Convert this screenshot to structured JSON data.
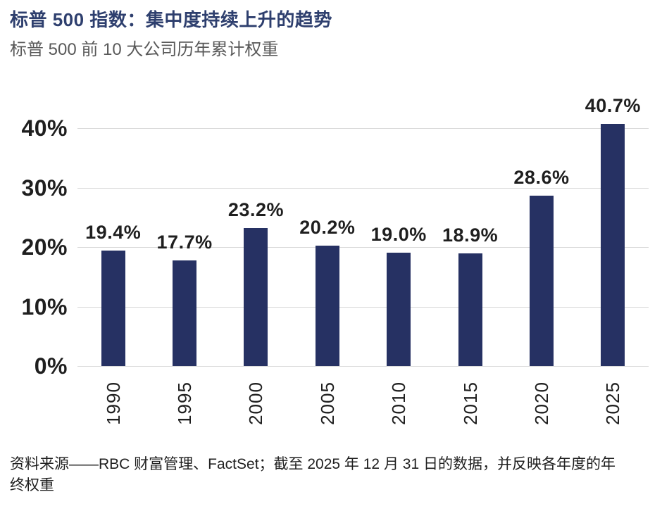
{
  "header": {
    "title": "标普 500 指数：集中度持续上升的趋势",
    "subtitle": "标普 500 前 10 大公司历年累计权重"
  },
  "chart_data": {
    "type": "bar",
    "title": "标普 500 指数：集中度持续上升的趋势",
    "subtitle": "标普 500 前 10 大公司历年累计权重",
    "categories": [
      "1990",
      "1995",
      "2000",
      "2005",
      "2010",
      "2015",
      "2020",
      "2025"
    ],
    "values": [
      19.4,
      17.7,
      23.2,
      20.2,
      19.0,
      18.9,
      28.6,
      40.7
    ],
    "value_labels": [
      "19.4%",
      "17.7%",
      "23.2%",
      "20.2%",
      "19.0%",
      "18.9%",
      "28.6%",
      "40.7%"
    ],
    "yticks": [
      0,
      10,
      20,
      30,
      40
    ],
    "ytick_labels": [
      "0%",
      "10%",
      "20%",
      "30%",
      "40%"
    ],
    "ylim": [
      0,
      44
    ],
    "xlabel": "",
    "ylabel": "",
    "grid": "horizontal",
    "legend": "none",
    "x_tick_rotation": 90,
    "bar_color": "#263163",
    "gridline_color": "#d9d9d9",
    "label_color": "#1f1f1f"
  },
  "footer": {
    "source_note": "资料来源——RBC 财富管理、FactSet；截至 2025 年 12 月 31 日的数据，并反映各年度的年终权重"
  },
  "colors": {
    "title": "#2e3f6e",
    "subtitle": "#595959",
    "text": "#1f1f1f"
  }
}
